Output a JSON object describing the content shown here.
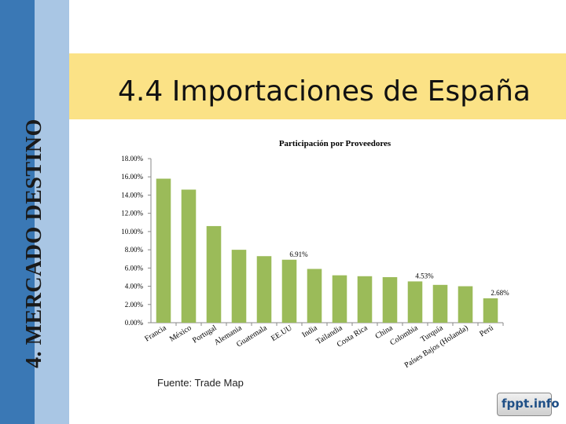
{
  "side_label": "4. MERCADO DESTINO",
  "title": "4.4 Importaciones de España",
  "source": "Fuente: Trade Map",
  "logo": "fppt.info",
  "colors": {
    "bar": "#9bbb59",
    "sidebar_dark": "#3a78b5",
    "sidebar_light": "#a9c6e4",
    "title_band": "#fbe286"
  },
  "chart_data": {
    "type": "bar",
    "title": "Participación por Proveedores",
    "xlabel": "",
    "ylabel": "",
    "ylim": [
      0,
      18
    ],
    "yticks": [
      "0.00%",
      "2.00%",
      "4.00%",
      "6.00%",
      "8.00%",
      "10.00%",
      "12.00%",
      "14.00%",
      "16.00%",
      "18.00%"
    ],
    "grid": false,
    "categories": [
      "Francia",
      "México",
      "Portugal",
      "Alemania",
      "Guatemala",
      "EE.UU",
      "India",
      "Tailandia",
      "Costa Rica",
      "China",
      "Colombia",
      "Turquía",
      "Países Bajos (Holanda)",
      "Perú"
    ],
    "values": [
      15.8,
      14.6,
      10.6,
      8.0,
      7.3,
      6.91,
      5.9,
      5.2,
      5.1,
      5.0,
      4.53,
      4.15,
      4.0,
      2.68
    ],
    "data_labels": [
      null,
      null,
      null,
      null,
      null,
      "6.91%",
      null,
      null,
      null,
      null,
      "4.53%",
      null,
      null,
      "2.68%"
    ]
  }
}
